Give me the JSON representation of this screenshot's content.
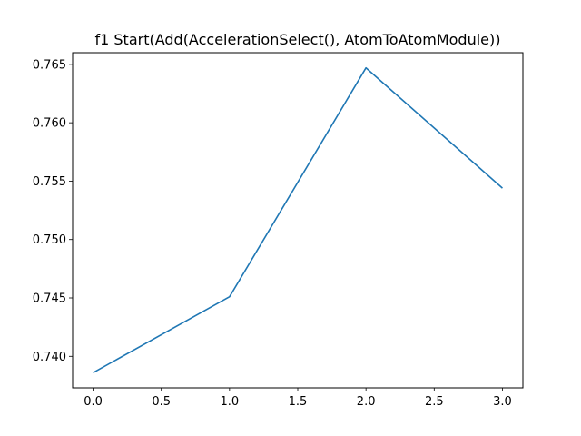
{
  "chart_data": {
    "type": "line",
    "title": "f1 Start(Add(AccelerationSelect(), AtomToAtomModule))",
    "xlabel": "",
    "ylabel": "",
    "x": [
      0,
      1,
      2,
      3
    ],
    "series": [
      {
        "values": [
          0.7386,
          0.7451,
          0.7647,
          0.7544
        ],
        "color": "#1f77b4"
      }
    ],
    "xlim": [
      -0.15,
      3.15
    ],
    "ylim": [
      0.7373,
      0.766
    ],
    "xticks": [
      0,
      0.5,
      1,
      1.5,
      2,
      2.5,
      3
    ],
    "xtick_labels": [
      "0.0",
      "0.5",
      "1.0",
      "1.5",
      "2.0",
      "2.5",
      "3.0"
    ],
    "yticks": [
      0.74,
      0.745,
      0.75,
      0.755,
      0.76,
      0.765
    ],
    "ytick_labels": [
      "0.740",
      "0.745",
      "0.750",
      "0.755",
      "0.760",
      "0.765"
    ],
    "grid": false,
    "legend": "none"
  }
}
